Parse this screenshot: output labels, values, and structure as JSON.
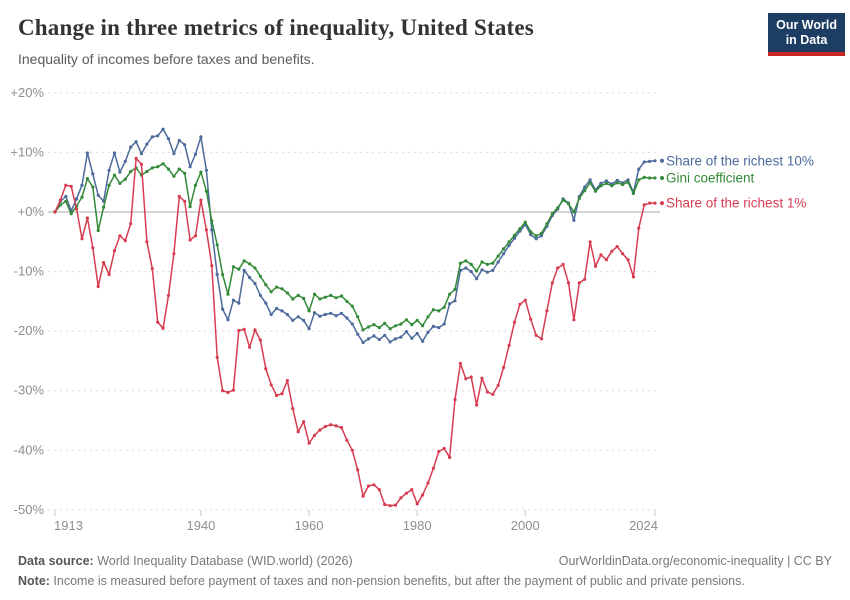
{
  "header": {
    "title": "Change in three metrics of inequality, United States",
    "subtitle": "Inequality of incomes before taxes and benefits.",
    "logo": {
      "line1": "Our World",
      "line2": "in Data",
      "bg_color": "#1d3d63",
      "accent_color": "#cb2824"
    }
  },
  "chart_data": {
    "type": "line",
    "title": "Change in three metrics of inequality, United States",
    "subtitle": "Inequality of incomes before taxes and benefits.",
    "xlabel": "",
    "ylabel": "",
    "x_range": {
      "start": 1913,
      "end": 2024
    },
    "x_ticks": [
      1913,
      1940,
      1960,
      1980,
      2000,
      2024
    ],
    "y_tick_labels": [
      "+20%",
      "+10%",
      "+0%",
      "-10%",
      "-20%",
      "-30%",
      "-40%",
      "-50%"
    ],
    "y_tick_values": [
      20,
      10,
      0,
      -10,
      -20,
      -30,
      -40,
      -50
    ],
    "ylim": [
      -50,
      20
    ],
    "grid": "horizontal-dashed",
    "zero_line": true,
    "legend_position": "right-of-line-ends",
    "axis_text_color": "#8e8e8e",
    "grid_color": "#dcdcdc",
    "zero_line_color": "#a8a8a8",
    "series": [
      {
        "name": "Share of the richest 10%",
        "color": "#4C6A9C",
        "values": [
          0,
          1.8,
          2.6,
          0.2,
          2.2,
          4.5,
          9.9,
          6.4,
          2.8,
          1.8,
          7.0,
          9.9,
          6.7,
          8.5,
          10.9,
          11.8,
          9.8,
          11.4,
          12.6,
          12.8,
          13.9,
          12.3,
          9.8,
          12.0,
          11.3,
          7.6,
          9.7,
          12.6,
          7.0,
          -3.0,
          -10.5,
          -16.3,
          -18.1,
          -14.8,
          -15.3,
          -9.8,
          -11.0,
          -12.0,
          -14.0,
          -15.3,
          -17.2,
          -16.2,
          -16.6,
          -17.2,
          -18.2,
          -17.6,
          -18.2,
          -19.6,
          -16.9,
          -17.5,
          -17.2,
          -17.0,
          -17.4,
          -17.0,
          -17.8,
          -18.8,
          -20.5,
          -21.9,
          -21.3,
          -20.8,
          -21.4,
          -20.7,
          -21.8,
          -21.3,
          -21.0,
          -20.1,
          -21.2,
          -20.4,
          -21.7,
          -20.2,
          -19.2,
          -19.4,
          -18.8,
          -15.4,
          -14.9,
          -9.8,
          -9.4,
          -10.0,
          -11.2,
          -9.7,
          -10.1,
          -9.8,
          -8.4,
          -7.0,
          -5.6,
          -4.4,
          -3.2,
          -2.1,
          -3.8,
          -4.5,
          -4.0,
          -2.4,
          -0.6,
          0.5,
          2.2,
          1.5,
          -1.4,
          2.6,
          4.2,
          5.4,
          3.7,
          4.8,
          5.2,
          4.7,
          5.3,
          4.9,
          5.4,
          3.3,
          7.2,
          8.4,
          8.5,
          8.6
        ]
      },
      {
        "name": "Gini coefficient",
        "color": "#338A38",
        "values": [
          0,
          1.2,
          1.8,
          -0.3,
          1.0,
          2.5,
          5.6,
          4.2,
          -3.1,
          0.8,
          4.5,
          6.2,
          4.8,
          5.5,
          6.8,
          7.4,
          6.2,
          6.8,
          7.4,
          7.6,
          8.1,
          7.2,
          6.0,
          7.2,
          6.5,
          0.9,
          4.5,
          6.7,
          3.5,
          -1.5,
          -5.5,
          -10.5,
          -13.8,
          -9.2,
          -9.6,
          -8.2,
          -8.7,
          -9.4,
          -10.8,
          -12.2,
          -13.4,
          -12.6,
          -12.9,
          -13.6,
          -14.6,
          -14.0,
          -14.5,
          -16.6,
          -13.8,
          -14.6,
          -14.3,
          -14.0,
          -14.4,
          -14.1,
          -15.0,
          -15.8,
          -17.6,
          -19.8,
          -19.3,
          -18.9,
          -19.4,
          -18.7,
          -19.6,
          -19.1,
          -18.8,
          -18.1,
          -18.9,
          -18.2,
          -19.1,
          -17.6,
          -16.4,
          -16.6,
          -16.0,
          -13.8,
          -13.0,
          -8.6,
          -8.2,
          -8.8,
          -9.9,
          -8.4,
          -8.8,
          -8.6,
          -7.4,
          -6.2,
          -5.0,
          -3.9,
          -2.8,
          -1.7,
          -3.3,
          -4.0,
          -3.6,
          -2.0,
          -0.3,
          0.7,
          2.0,
          1.4,
          0.0,
          2.3,
          3.6,
          4.9,
          3.5,
          4.4,
          4.8,
          4.4,
          4.9,
          4.6,
          5.0,
          3.1,
          5.4,
          5.8,
          5.7,
          5.7
        ]
      },
      {
        "name": "Share of the richest 1%",
        "color": "#D73C50",
        "values": [
          0,
          2.0,
          4.5,
          4.3,
          0.5,
          -4.5,
          -1.0,
          -6.0,
          -12.5,
          -8.5,
          -10.5,
          -6.5,
          -4.0,
          -4.8,
          -2.0,
          9.0,
          8.0,
          -5.0,
          -9.5,
          -18.5,
          -19.5,
          -14.0,
          -7.0,
          2.6,
          1.8,
          -4.7,
          -4.0,
          2.0,
          -3.0,
          -9.0,
          -24.4,
          -30.0,
          -30.3,
          -29.9,
          -19.9,
          -19.7,
          -22.7,
          -19.8,
          -21.5,
          -26.3,
          -29.0,
          -30.8,
          -30.5,
          -28.3,
          -33.0,
          -36.9,
          -35.2,
          -38.8,
          -37.5,
          -36.6,
          -36.0,
          -35.7,
          -35.9,
          -36.2,
          -38.3,
          -40.0,
          -43.3,
          -47.7,
          -46.0,
          -45.8,
          -46.6,
          -49.1,
          -49.3,
          -49.2,
          -48.0,
          -47.2,
          -46.6,
          -49.0,
          -47.5,
          -45.5,
          -43.0,
          -40.2,
          -39.7,
          -41.2,
          -31.5,
          -25.4,
          -28.0,
          -27.7,
          -32.4,
          -27.9,
          -30.2,
          -30.6,
          -29.1,
          -26.1,
          -22.4,
          -18.5,
          -15.5,
          -14.8,
          -18.0,
          -20.7,
          -21.3,
          -16.6,
          -11.9,
          -9.4,
          -8.8,
          -11.9,
          -18.1,
          -11.9,
          -11.3,
          -5.0,
          -9.1,
          -7.2,
          -8.0,
          -6.6,
          -5.8,
          -7.0,
          -8.0,
          -10.9,
          -2.7,
          1.2,
          1.5,
          1.5
        ]
      }
    ]
  },
  "footer": {
    "source_label": "Data source:",
    "source_text": " World Inequality Database (WID.world) (2026)",
    "citation": "OurWorldinData.org/economic-inequality | CC BY",
    "note_label": "Note:",
    "note_text": " Income is measured before payment of taxes and non-pension benefits, but after the payment of public and private pensions."
  }
}
